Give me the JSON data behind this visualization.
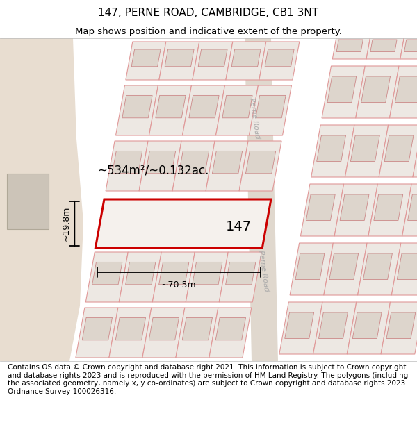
{
  "title": "147, PERNE ROAD, CAMBRIDGE, CB1 3NT",
  "subtitle": "Map shows position and indicative extent of the property.",
  "footer": "Contains OS data © Crown copyright and database right 2021. This information is subject to Crown copyright and database rights 2023 and is reproduced with the permission of HM Land Registry. The polygons (including the associated geometry, namely x, y co-ordinates) are subject to Crown copyright and database rights 2023 Ordnance Survey 100026316.",
  "label_147": "147",
  "area_label": "~534m²/~0.132ac.",
  "width_label": "~70.5m",
  "height_label": "~19.8m",
  "perne_road_label": "Perne Road",
  "plot_line_color": "#cc0000",
  "map_bg": "#f5f1ed",
  "left_bg": "#e8ddd0",
  "road_color": "#e0d8ce",
  "block_fill": "#ede8e3",
  "block_edge": "#e09898",
  "bld_fill": "#ddd5cc",
  "bld_edge": "#cc8888",
  "fig_width": 6.0,
  "fig_height": 6.25,
  "title_fontsize": 11,
  "subtitle_fontsize": 9.5,
  "footer_fontsize": 7.5
}
